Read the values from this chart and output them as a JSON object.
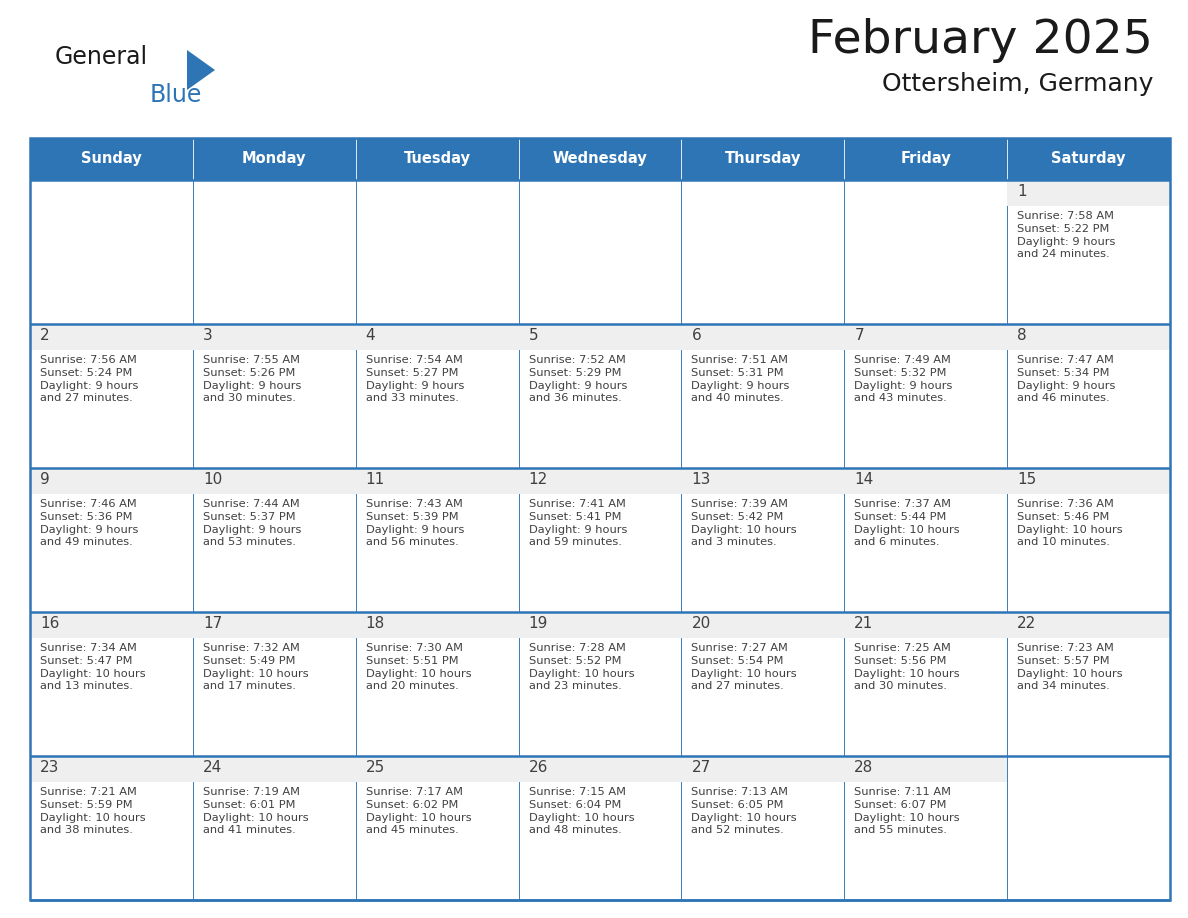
{
  "title": "February 2025",
  "subtitle": "Ottersheim, Germany",
  "header_color": "#2E75B6",
  "header_text_color": "#FFFFFF",
  "cell_bg_color": "#FFFFFF",
  "cell_day_strip_color": "#EFEFEF",
  "cell_border_color": "#2E75B6",
  "day_number_color": "#404040",
  "cell_text_color": "#404040",
  "days_of_week": [
    "Sunday",
    "Monday",
    "Tuesday",
    "Wednesday",
    "Thursday",
    "Friday",
    "Saturday"
  ],
  "calendar_data": [
    [
      null,
      null,
      null,
      null,
      null,
      null,
      {
        "day": 1,
        "sunrise": "7:58 AM",
        "sunset": "5:22 PM",
        "daylight": "9 hours and 24 minutes."
      }
    ],
    [
      {
        "day": 2,
        "sunrise": "7:56 AM",
        "sunset": "5:24 PM",
        "daylight": "9 hours and 27 minutes."
      },
      {
        "day": 3,
        "sunrise": "7:55 AM",
        "sunset": "5:26 PM",
        "daylight": "9 hours and 30 minutes."
      },
      {
        "day": 4,
        "sunrise": "7:54 AM",
        "sunset": "5:27 PM",
        "daylight": "9 hours and 33 minutes."
      },
      {
        "day": 5,
        "sunrise": "7:52 AM",
        "sunset": "5:29 PM",
        "daylight": "9 hours and 36 minutes."
      },
      {
        "day": 6,
        "sunrise": "7:51 AM",
        "sunset": "5:31 PM",
        "daylight": "9 hours and 40 minutes."
      },
      {
        "day": 7,
        "sunrise": "7:49 AM",
        "sunset": "5:32 PM",
        "daylight": "9 hours and 43 minutes."
      },
      {
        "day": 8,
        "sunrise": "7:47 AM",
        "sunset": "5:34 PM",
        "daylight": "9 hours and 46 minutes."
      }
    ],
    [
      {
        "day": 9,
        "sunrise": "7:46 AM",
        "sunset": "5:36 PM",
        "daylight": "9 hours and 49 minutes."
      },
      {
        "day": 10,
        "sunrise": "7:44 AM",
        "sunset": "5:37 PM",
        "daylight": "9 hours and 53 minutes."
      },
      {
        "day": 11,
        "sunrise": "7:43 AM",
        "sunset": "5:39 PM",
        "daylight": "9 hours and 56 minutes."
      },
      {
        "day": 12,
        "sunrise": "7:41 AM",
        "sunset": "5:41 PM",
        "daylight": "9 hours and 59 minutes."
      },
      {
        "day": 13,
        "sunrise": "7:39 AM",
        "sunset": "5:42 PM",
        "daylight": "10 hours and 3 minutes."
      },
      {
        "day": 14,
        "sunrise": "7:37 AM",
        "sunset": "5:44 PM",
        "daylight": "10 hours and 6 minutes."
      },
      {
        "day": 15,
        "sunrise": "7:36 AM",
        "sunset": "5:46 PM",
        "daylight": "10 hours and 10 minutes."
      }
    ],
    [
      {
        "day": 16,
        "sunrise": "7:34 AM",
        "sunset": "5:47 PM",
        "daylight": "10 hours and 13 minutes."
      },
      {
        "day": 17,
        "sunrise": "7:32 AM",
        "sunset": "5:49 PM",
        "daylight": "10 hours and 17 minutes."
      },
      {
        "day": 18,
        "sunrise": "7:30 AM",
        "sunset": "5:51 PM",
        "daylight": "10 hours and 20 minutes."
      },
      {
        "day": 19,
        "sunrise": "7:28 AM",
        "sunset": "5:52 PM",
        "daylight": "10 hours and 23 minutes."
      },
      {
        "day": 20,
        "sunrise": "7:27 AM",
        "sunset": "5:54 PM",
        "daylight": "10 hours and 27 minutes."
      },
      {
        "day": 21,
        "sunrise": "7:25 AM",
        "sunset": "5:56 PM",
        "daylight": "10 hours and 30 minutes."
      },
      {
        "day": 22,
        "sunrise": "7:23 AM",
        "sunset": "5:57 PM",
        "daylight": "10 hours and 34 minutes."
      }
    ],
    [
      {
        "day": 23,
        "sunrise": "7:21 AM",
        "sunset": "5:59 PM",
        "daylight": "10 hours and 38 minutes."
      },
      {
        "day": 24,
        "sunrise": "7:19 AM",
        "sunset": "6:01 PM",
        "daylight": "10 hours and 41 minutes."
      },
      {
        "day": 25,
        "sunrise": "7:17 AM",
        "sunset": "6:02 PM",
        "daylight": "10 hours and 45 minutes."
      },
      {
        "day": 26,
        "sunrise": "7:15 AM",
        "sunset": "6:04 PM",
        "daylight": "10 hours and 48 minutes."
      },
      {
        "day": 27,
        "sunrise": "7:13 AM",
        "sunset": "6:05 PM",
        "daylight": "10 hours and 52 minutes."
      },
      {
        "day": 28,
        "sunrise": "7:11 AM",
        "sunset": "6:07 PM",
        "daylight": "10 hours and 55 minutes."
      },
      null
    ]
  ],
  "logo_text_general": "General",
  "logo_text_blue": "Blue",
  "logo_main_color": "#1a1a1a",
  "logo_blue_color": "#2E75B6",
  "fig_width": 11.88,
  "fig_height": 9.18,
  "dpi": 100
}
